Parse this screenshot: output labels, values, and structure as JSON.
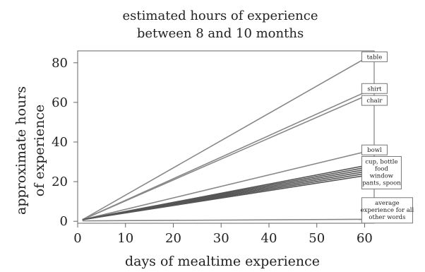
{
  "chart_data": {
    "type": "line",
    "title_line1": "estimated hours of experience",
    "title_line2": "between 8 and 10 months",
    "xlabel": "days of mealtime experience",
    "ylabel_line1": "approximate hours",
    "ylabel_line2": "of experience",
    "xlim": [
      0,
      62
    ],
    "ylim": [
      -1,
      86
    ],
    "x_ticks": [
      0,
      10,
      20,
      30,
      40,
      50,
      60
    ],
    "y_ticks": [
      0,
      20,
      40,
      60,
      80
    ],
    "grid": false,
    "series": [
      {
        "name": "table",
        "x": [
          1,
          60
        ],
        "y": [
          0.8,
          82
        ],
        "label": "table",
        "label_y": 83
      },
      {
        "name": "shirt",
        "x": [
          1,
          60
        ],
        "y": [
          0.8,
          65
        ],
        "label": "shirt",
        "label_y": 67
      },
      {
        "name": "chair",
        "x": [
          1,
          60
        ],
        "y": [
          0.8,
          63
        ],
        "label": "chair",
        "label_y": 61
      },
      {
        "name": "bowl",
        "x": [
          1,
          60
        ],
        "y": [
          0.8,
          35
        ],
        "label": "bowl",
        "label_y": 36
      },
      {
        "name": "cup",
        "x": [
          1,
          60
        ],
        "y": [
          0.8,
          28
        ]
      },
      {
        "name": "bottle",
        "x": [
          1,
          60
        ],
        "y": [
          0.8,
          27
        ]
      },
      {
        "name": "food",
        "x": [
          1,
          60
        ],
        "y": [
          0.8,
          26
        ]
      },
      {
        "name": "window",
        "x": [
          1,
          60
        ],
        "y": [
          0.8,
          25
        ]
      },
      {
        "name": "pants",
        "x": [
          1,
          60
        ],
        "y": [
          0.8,
          24
        ]
      },
      {
        "name": "spoon",
        "x": [
          1,
          60
        ],
        "y": [
          0.8,
          23
        ]
      },
      {
        "name": "average experience for all other words",
        "x": [
          1,
          60
        ],
        "y": [
          0.2,
          1
        ]
      }
    ],
    "group_labels": [
      {
        "lines": [
          "cup, bottle",
          "food",
          "window",
          "pants, spoon"
        ],
        "center_y": 24.5
      },
      {
        "lines": [
          "average",
          "experience for all",
          "other words"
        ],
        "center_y": 5.5
      }
    ]
  }
}
